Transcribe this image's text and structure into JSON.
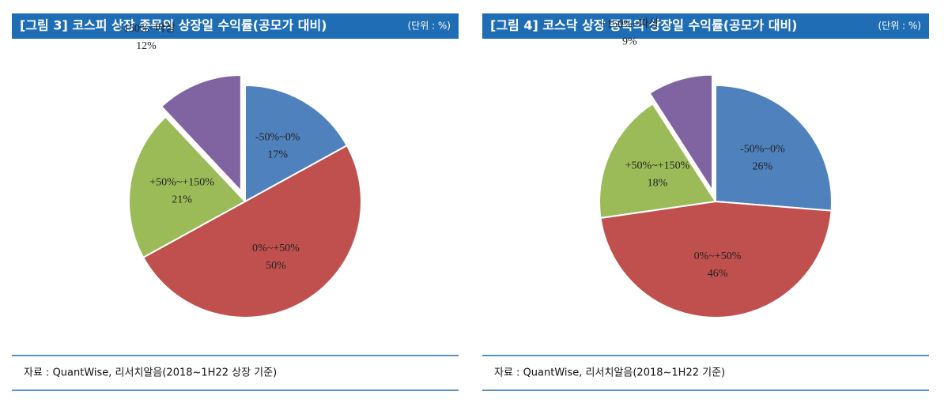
{
  "chart_data": [
    {
      "type": "pie",
      "title": "[그림 3] 코스피 상장 종목의 상장일 수익률(공모가 대비)",
      "unit": "(단위 : %)",
      "categories": [
        "-50%~0%",
        "0%~+50%",
        "+50%~+150%",
        "+150%~따상"
      ],
      "values": [
        17,
        50,
        21,
        12
      ],
      "value_labels": [
        "17%",
        "50%",
        "21%",
        "12%"
      ],
      "colors": [
        "#4f81bd",
        "#c0504d",
        "#9bbb59",
        "#8064a2"
      ],
      "explode": [
        0,
        0,
        0,
        1
      ],
      "source": "자료 : QuantWise, 리서치알음(2018~1H22 상장 기준)"
    },
    {
      "type": "pie",
      "title": "[그림 4] 코스닥 상장 종목의 상장일 수익률(공모가 대비)",
      "unit": "(단위 : %)",
      "categories": [
        "-50%~0%",
        "0%~+50%",
        "+50%~+150%",
        "+150%~따상"
      ],
      "values": [
        26,
        46,
        18,
        9
      ],
      "value_labels": [
        "26%",
        "46%",
        "18%",
        "9%"
      ],
      "colors": [
        "#4f81bd",
        "#c0504d",
        "#9bbb59",
        "#8064a2"
      ],
      "explode": [
        0,
        0,
        0,
        1
      ],
      "source": "자료 : QuantWise, 리서치알음(2018~1H22 기준)"
    }
  ]
}
